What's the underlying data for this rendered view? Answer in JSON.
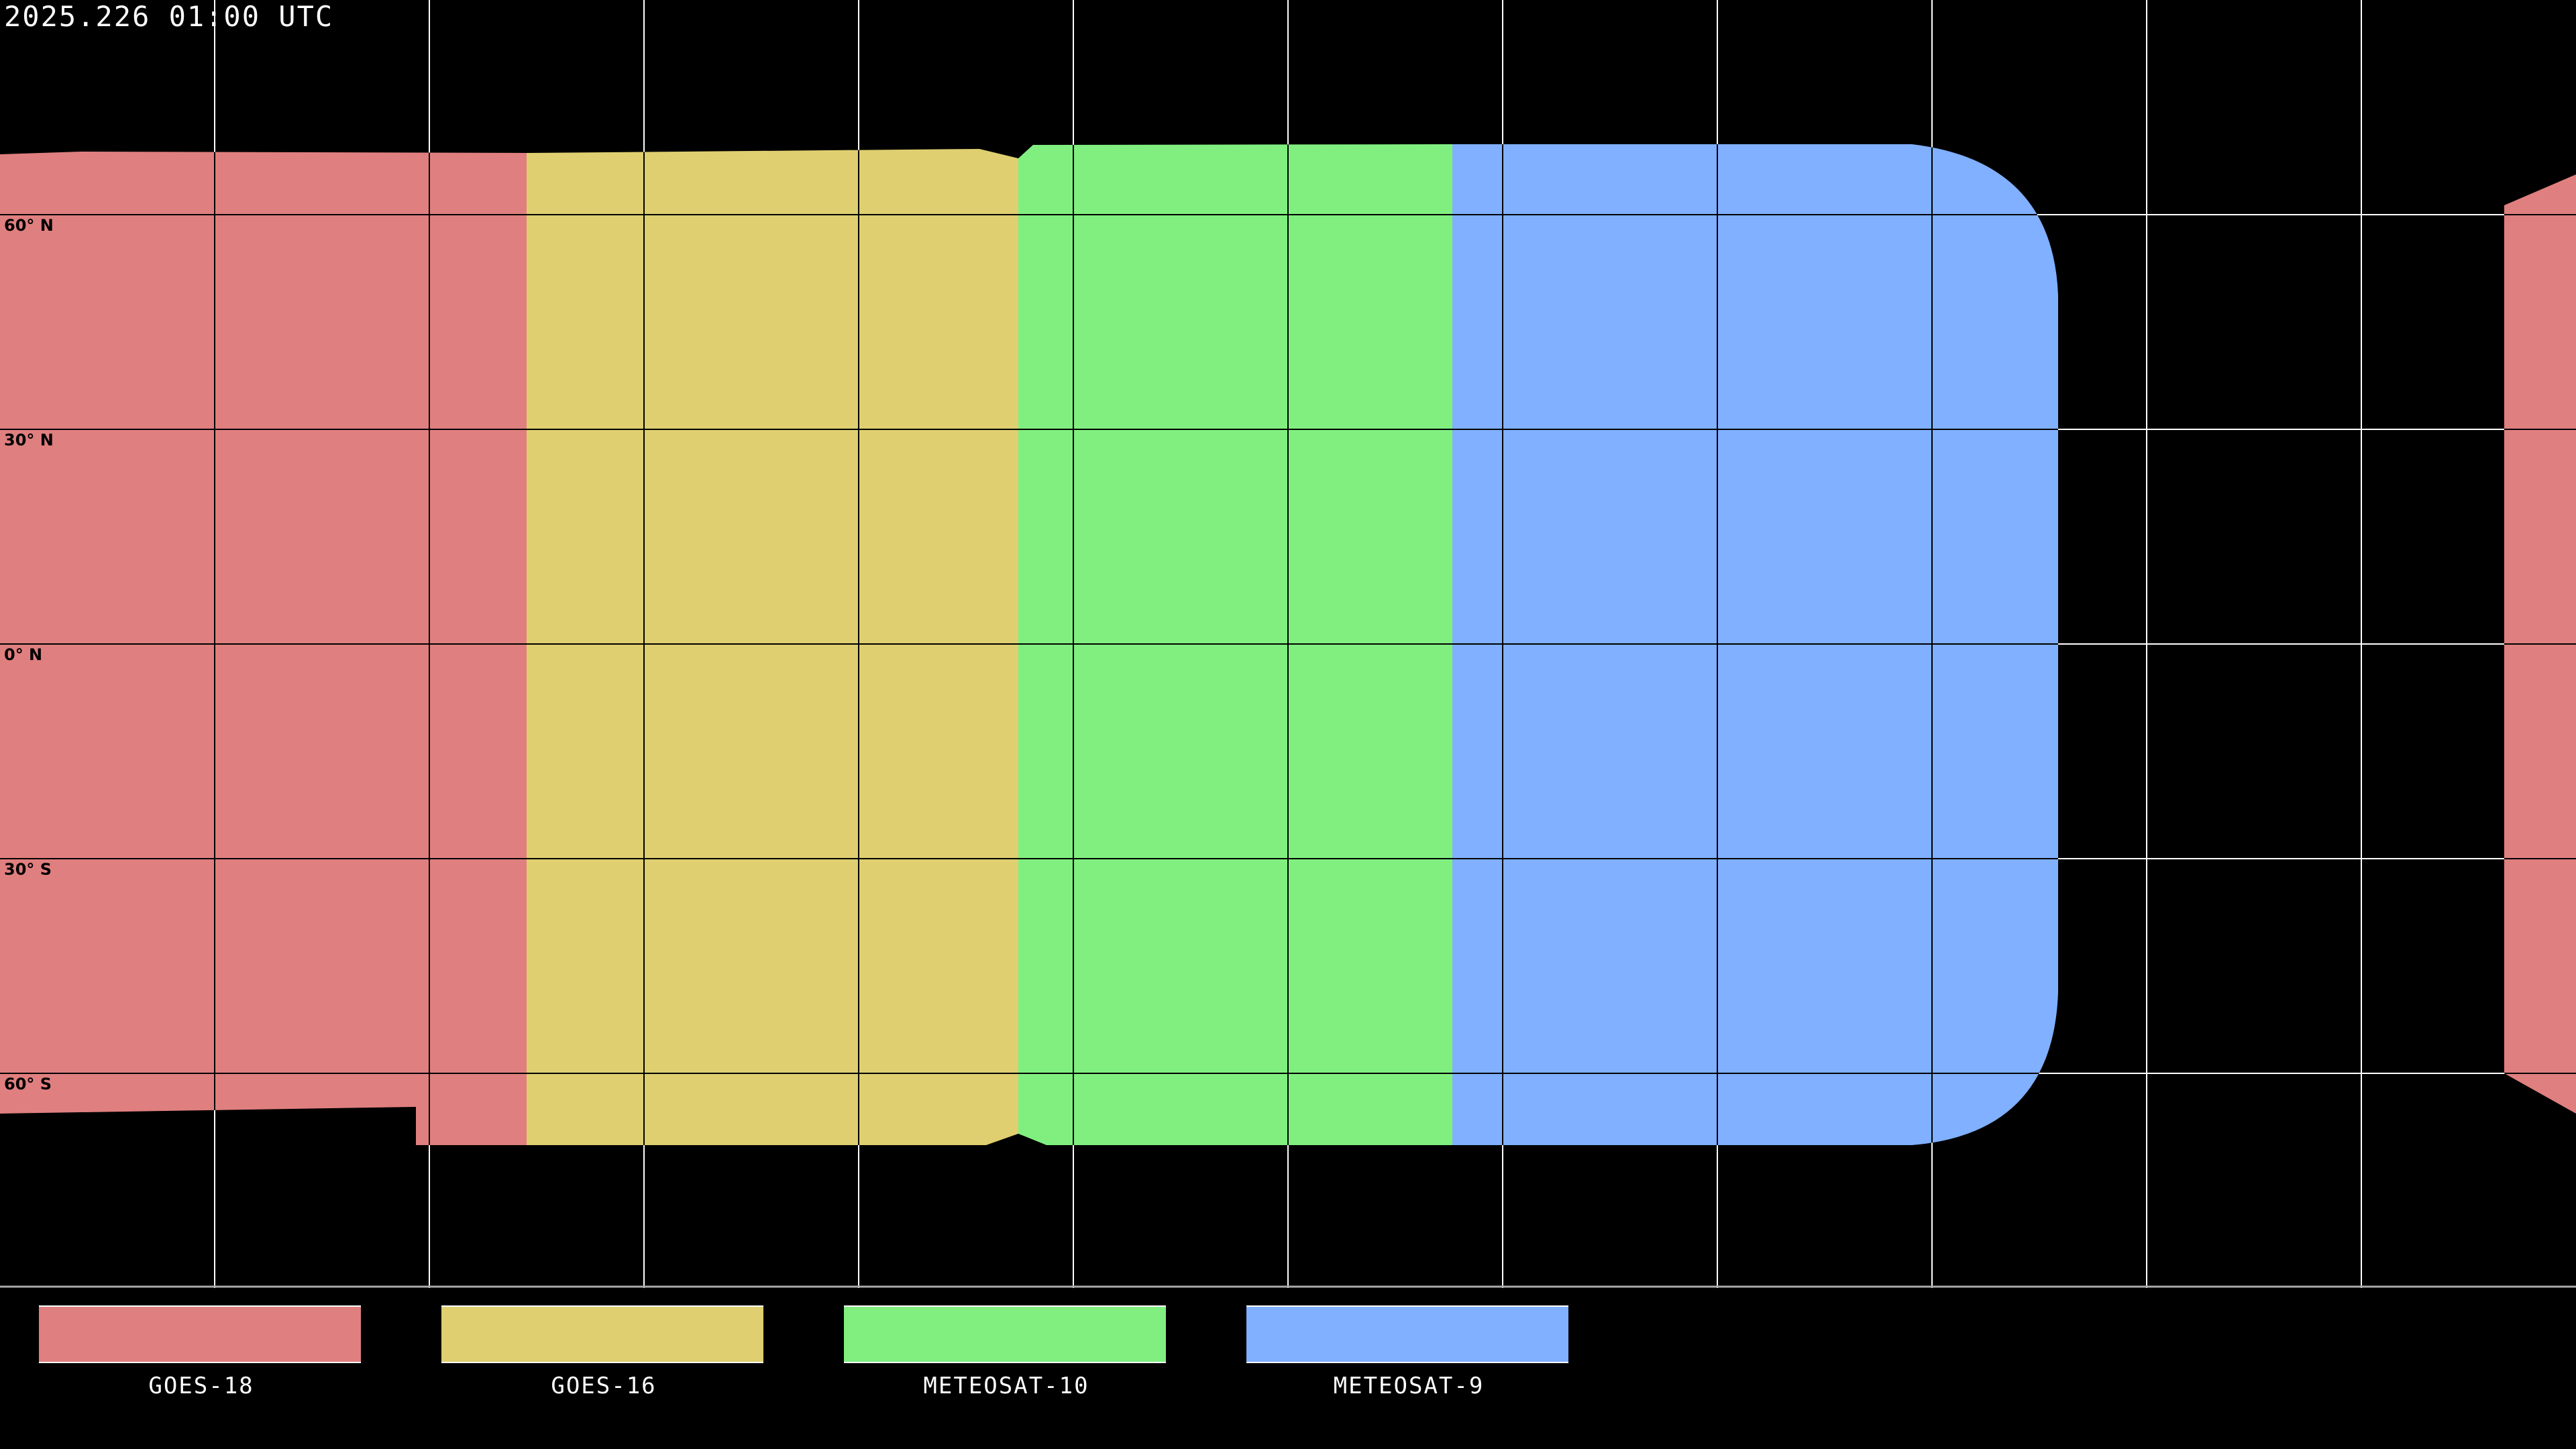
{
  "header": {
    "timestamp": "2025.226 01:00 UTC"
  },
  "map": {
    "projection": "equirectangular",
    "lon_range": [
      -180,
      180
    ],
    "lat_range": [
      -90,
      90
    ],
    "grid_spacing_deg": 30,
    "latitude_labels": [
      "60° N",
      "30° N",
      "0° N",
      "30° S",
      "60° S"
    ],
    "background_color": "#000000",
    "coastline_color": "#ffffff"
  },
  "legend": [
    {
      "label": "GOES-18",
      "color": "#e07f7f"
    },
    {
      "label": "GOES-16",
      "color": "#dfcf70"
    },
    {
      "label": "METEOSAT-10",
      "color": "#80ef80"
    },
    {
      "label": "METEOSAT-9",
      "color": "#80b0ff"
    }
  ]
}
